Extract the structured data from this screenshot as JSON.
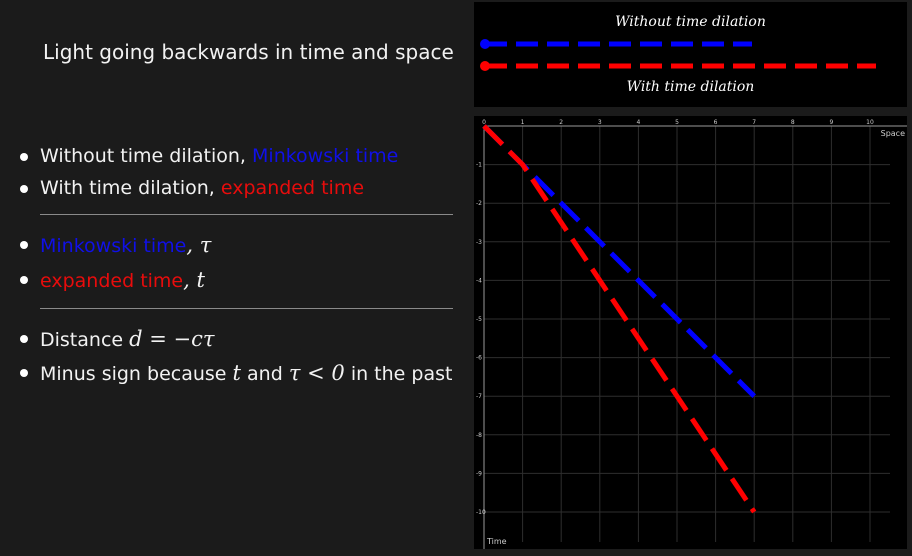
{
  "title": "Light going backwards in time and space",
  "bullets": {
    "b1_prefix": "Without time dilation,",
    "b1_colored": "Minkowski time",
    "b2_prefix": "With time dilation,",
    "b2_colored": "expanded time",
    "b3_colored": "Minkowski time",
    "b3_symbol": ", τ",
    "b4_colored": "expanded time",
    "b4_symbol": ", t",
    "b5_prefix": "Distance",
    "b5_formula": "d = −cτ",
    "b6_prefix": "Minus sign because",
    "b6_t": "t",
    "b6_and": "and",
    "b6_cond": "τ < 0",
    "b6_suffix": "in the past"
  },
  "legend": {
    "top_label": "Without time dilation",
    "bottom_label": "With time dilation"
  },
  "colors": {
    "minkowski": "#0000ff",
    "expanded": "#ff0000"
  },
  "chart_data": {
    "type": "line",
    "xlabel": "Space",
    "ylabel": "Time",
    "xlim": [
      0,
      10
    ],
    "ylim": [
      -10,
      0
    ],
    "x_ticks": [
      "0",
      "1",
      "2",
      "3",
      "4",
      "5",
      "6",
      "7",
      "8",
      "9",
      "10"
    ],
    "y_ticks": [
      "0",
      "-1",
      "-2",
      "-3",
      "-4",
      "-5",
      "-6",
      "-7",
      "-8",
      "-9",
      "-10"
    ],
    "grid": true,
    "series": [
      {
        "name": "Without time dilation",
        "color": "#0000ff",
        "dashed": true,
        "points": [
          [
            0,
            0
          ],
          [
            1,
            -1
          ],
          [
            7,
            -7
          ]
        ]
      },
      {
        "name": "With time dilation",
        "color": "#ff0000",
        "dashed": true,
        "points": [
          [
            0,
            0
          ],
          [
            1,
            -1
          ],
          [
            7,
            -10
          ]
        ]
      }
    ]
  }
}
